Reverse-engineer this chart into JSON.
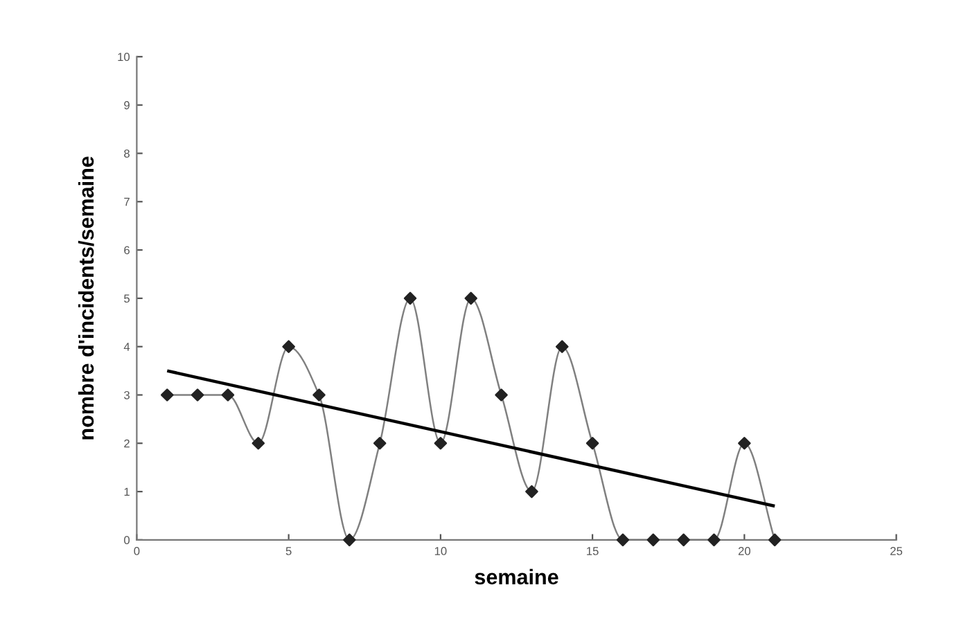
{
  "chart_data": {
    "type": "line",
    "xlabel": "semaine",
    "ylabel": "nombre d'incidents/semaine",
    "xlim": [
      0,
      25
    ],
    "xticks": [
      0,
      5,
      10,
      15,
      20,
      25
    ],
    "ylim": [
      0,
      10
    ],
    "yticks": [
      0,
      1,
      2,
      3,
      4,
      5,
      6,
      7,
      8,
      9,
      10
    ],
    "grid": false,
    "series": [
      {
        "marker": "diamond",
        "color": "#808080",
        "colors": [
          "#222222",
          "#222222",
          "#222222",
          "#222222",
          "#222222",
          "#222222",
          "#222222",
          "#222222",
          "#222222",
          "#222222",
          "#222222",
          "#222222",
          "#222222",
          "#222222",
          "#222222",
          "#222222",
          "#222222",
          "#222222",
          "#222222",
          "#222222",
          "#222222"
        ],
        "x": [
          1,
          2,
          3,
          4,
          5,
          6,
          7,
          8,
          9,
          10,
          11,
          12,
          13,
          14,
          15,
          16,
          17,
          18,
          19,
          20,
          21
        ],
        "values": [
          3,
          3,
          3,
          2,
          4,
          3,
          0,
          2,
          5,
          2,
          5,
          3,
          1,
          4,
          2,
          0,
          0,
          0,
          0,
          2,
          0
        ]
      },
      {
        "marker": "none",
        "color": "#000000",
        "x": [
          1,
          21
        ],
        "values": [
          3.5,
          0.7
        ]
      }
    ]
  }
}
